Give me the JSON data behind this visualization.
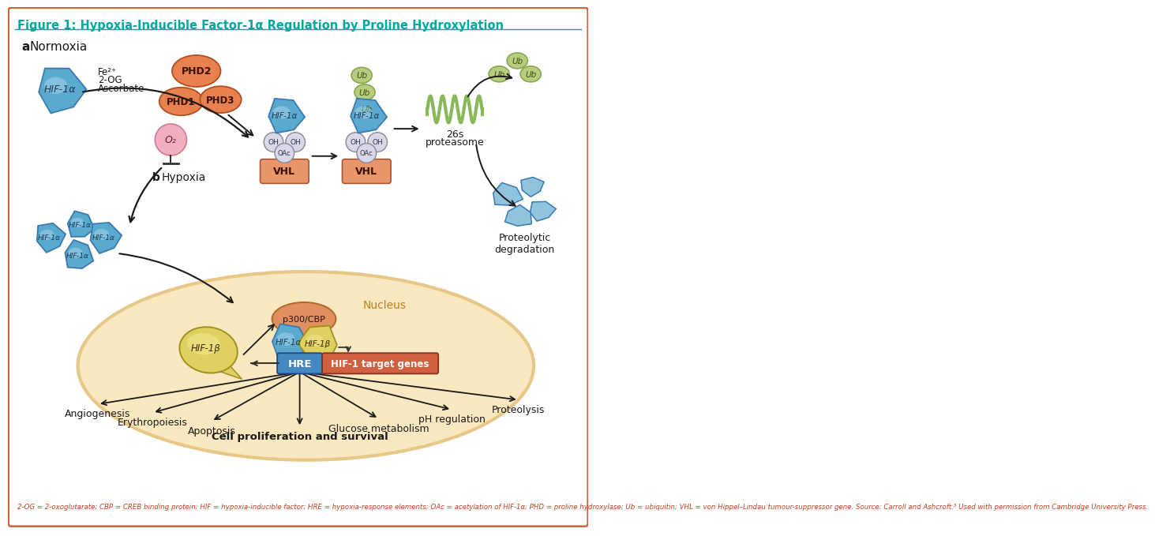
{
  "title": "Figure 1: Hypoxia-Inducible Factor-1α Regulation by Proline Hydroxylation",
  "title_color": "#00a89d",
  "background_color": "#ffffff",
  "border_color": "#d4603a",
  "fig_width": 9.55,
  "fig_height": 8.57,
  "footnote": "2-OG = 2-oxoglutarate; CBP = CREB binding protein; HIF = hypoxia-inducible factor; HRE = hypoxia-response elements; OAc = acetylation of HIF-1α; PHD = proline hydroxylase; Ub = ubiquitin; VHL = von Hippel–Lindau tumour-suppressor gene. Source: Carroll and Ashcroft.³ Used with permission from Cambridge University Press.",
  "hif_blue_light": "#8cc8e0",
  "hif_blue": "#5aaad0",
  "hif_blue_dark": "#3a7ab0",
  "phd_orange": "#e88050",
  "vhl_salmon": "#e8956a",
  "ub_green": "#b8cc80",
  "ub_green_edge": "#88a850",
  "o2_pink": "#f0b0c0",
  "o2_pink_edge": "#d08090",
  "nucleus_fill": "#fae8c0",
  "nucleus_stroke": "#e8c888",
  "hre_blue": "#4488c0",
  "hif_target_gradient_left": "#e07850",
  "hif_target_gradient_right": "#c85030",
  "p300_orange": "#e09060",
  "hif1b_yellow": "#e0d060",
  "hif1b_yellow_light": "#f0e890",
  "arrow_color": "#1a1a1a",
  "text_color": "#1a1a1a",
  "coil_green": "#88b858",
  "frag_blue": "#90c4dc"
}
